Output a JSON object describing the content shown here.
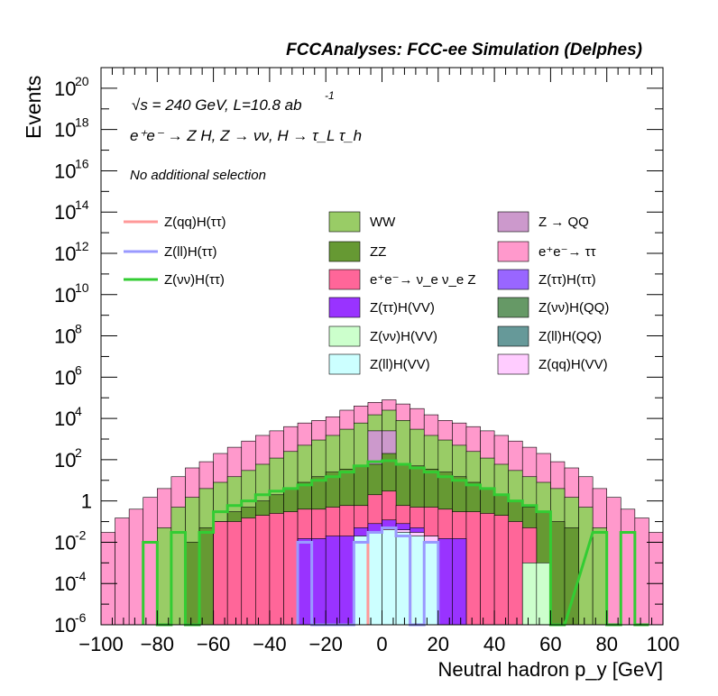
{
  "title": "FCCAnalyses: FCC-ee Simulation (Delphes)",
  "annotations": {
    "energy": "√s = 240 GeV, L=10.8 ab",
    "energy_exp": "-1",
    "process": "e⁺e⁻ → Z H, Z → νν, H → τ_L τ_h",
    "selection": "No additional selection"
  },
  "chart_data": {
    "type": "histogram-stacked-log",
    "xlabel": "Neutral hadron p_y [GeV]",
    "ylabel": "Events",
    "xlim": [
      -100,
      100
    ],
    "ylim": [
      1e-06,
      1e+21
    ],
    "log_y": true,
    "bin_width": 5,
    "x_ticks": [
      -100,
      -80,
      -60,
      -40,
      -20,
      0,
      20,
      40,
      60,
      80,
      100
    ],
    "y_ticks": [
      {
        "value": 1e-06,
        "label": "10",
        "exp": "-6"
      },
      {
        "value": 0.0001,
        "label": "10",
        "exp": "-4"
      },
      {
        "value": 0.01,
        "label": "10",
        "exp": "-2"
      },
      {
        "value": 1,
        "label": "1",
        "exp": ""
      },
      {
        "value": 100.0,
        "label": "10",
        "exp": "2"
      },
      {
        "value": 10000.0,
        "label": "10",
        "exp": "4"
      },
      {
        "value": 1000000.0,
        "label": "10",
        "exp": "6"
      },
      {
        "value": 100000000.0,
        "label": "10",
        "exp": "8"
      },
      {
        "value": 10000000000.0,
        "label": "10",
        "exp": "10"
      },
      {
        "value": 1000000000000.0,
        "label": "10",
        "exp": "12"
      },
      {
        "value": 100000000000000.0,
        "label": "10",
        "exp": "14"
      },
      {
        "value": 1e+16,
        "label": "10",
        "exp": "16"
      },
      {
        "value": 1e+18,
        "label": "10",
        "exp": "18"
      },
      {
        "value": 1e+20,
        "label": "10",
        "exp": "20"
      }
    ],
    "legend_placement": "top",
    "stack_outlines": [
      {
        "name": "e⁺e⁻→ ττ",
        "color": "#ff99cc",
        "bins": [
          [
            -100,
            -95,
            0.03
          ],
          [
            -95,
            -90,
            0.15
          ],
          [
            -90,
            -85,
            0.4
          ],
          [
            -85,
            -80,
            1.5
          ],
          [
            -80,
            -75,
            4
          ],
          [
            -75,
            -70,
            15
          ],
          [
            -70,
            -65,
            40
          ],
          [
            -65,
            -60,
            80
          ],
          [
            -60,
            -55,
            200
          ],
          [
            -55,
            -50,
            400
          ],
          [
            -50,
            -45,
            800
          ],
          [
            -45,
            -40,
            1500
          ],
          [
            -40,
            -35,
            2500
          ],
          [
            -35,
            -30,
            4000
          ],
          [
            -30,
            -25,
            6000
          ],
          [
            -25,
            -20,
            8000
          ],
          [
            -20,
            -15,
            12000
          ],
          [
            -15,
            -10,
            25000
          ],
          [
            -10,
            -5,
            40000
          ],
          [
            -5,
            0,
            60000
          ],
          [
            0,
            5,
            80000
          ],
          [
            5,
            10,
            50000
          ],
          [
            10,
            15,
            30000
          ],
          [
            15,
            20,
            15000
          ],
          [
            20,
            25,
            8000
          ],
          [
            25,
            30,
            6000
          ],
          [
            30,
            35,
            4000
          ],
          [
            35,
            40,
            2500
          ],
          [
            40,
            45,
            1500
          ],
          [
            45,
            50,
            800
          ],
          [
            50,
            55,
            400
          ],
          [
            55,
            60,
            200
          ],
          [
            60,
            65,
            80
          ],
          [
            65,
            70,
            40
          ],
          [
            70,
            75,
            15
          ],
          [
            75,
            80,
            4
          ],
          [
            80,
            85,
            1.5
          ],
          [
            85,
            90,
            0.4
          ],
          [
            90,
            95,
            0.15
          ],
          [
            95,
            100,
            0.03
          ]
        ]
      },
      {
        "name": "WW",
        "color": "#99cc66",
        "bins": [
          [
            -85,
            -80,
            1e-06
          ],
          [
            -80,
            -75,
            0.05
          ],
          [
            -75,
            -70,
            0.5
          ],
          [
            -70,
            -65,
            1.5
          ],
          [
            -65,
            -60,
            4
          ],
          [
            -60,
            -55,
            8
          ],
          [
            -55,
            -50,
            15
          ],
          [
            -50,
            -45,
            30
          ],
          [
            -45,
            -40,
            60
          ],
          [
            -40,
            -35,
            120
          ],
          [
            -35,
            -30,
            250
          ],
          [
            -30,
            -25,
            500
          ],
          [
            -25,
            -20,
            900
          ],
          [
            -20,
            -15,
            1500
          ],
          [
            -15,
            -10,
            3000
          ],
          [
            -10,
            -5,
            6000
          ],
          [
            -5,
            0,
            15000
          ],
          [
            0,
            5,
            25000
          ],
          [
            5,
            10,
            8000
          ],
          [
            10,
            15,
            3000
          ],
          [
            15,
            20,
            1500
          ],
          [
            20,
            25,
            900
          ],
          [
            25,
            30,
            500
          ],
          [
            30,
            35,
            250
          ],
          [
            35,
            40,
            120
          ],
          [
            40,
            45,
            60
          ],
          [
            45,
            50,
            30
          ],
          [
            50,
            55,
            15
          ],
          [
            55,
            60,
            8
          ],
          [
            60,
            65,
            4
          ],
          [
            65,
            70,
            1.5
          ],
          [
            70,
            75,
            0.5
          ],
          [
            75,
            80,
            0.05
          ]
        ]
      },
      {
        "name": "Z → QQ",
        "color": "#cc99cc",
        "bins": [
          [
            -5,
            0,
            2500
          ],
          [
            0,
            5,
            2500
          ]
        ]
      },
      {
        "name": "ZZ",
        "color": "#669933",
        "bins": [
          [
            -70,
            -65,
            0.01
          ],
          [
            -65,
            -60,
            0.05
          ],
          [
            -60,
            -55,
            0.1
          ],
          [
            -55,
            -50,
            0.3
          ],
          [
            -50,
            -45,
            0.5
          ],
          [
            -45,
            -40,
            1
          ],
          [
            -40,
            -35,
            2
          ],
          [
            -35,
            -30,
            4
          ],
          [
            -30,
            -25,
            8
          ],
          [
            -25,
            -20,
            15
          ],
          [
            -20,
            -15,
            25
          ],
          [
            -15,
            -10,
            35
          ],
          [
            -10,
            -5,
            50
          ],
          [
            -5,
            0,
            60
          ],
          [
            0,
            5,
            200
          ],
          [
            5,
            10,
            60
          ],
          [
            10,
            15,
            50
          ],
          [
            15,
            20,
            35
          ],
          [
            20,
            25,
            25
          ],
          [
            25,
            30,
            15
          ],
          [
            30,
            35,
            8
          ],
          [
            35,
            40,
            4
          ],
          [
            40,
            45,
            2
          ],
          [
            45,
            50,
            1
          ],
          [
            50,
            55,
            0.5
          ],
          [
            55,
            60,
            0.3
          ],
          [
            60,
            65,
            0.1
          ],
          [
            65,
            70,
            0.05
          ]
        ]
      },
      {
        "name": "e⁺e⁻→ ν_e ν_e Z",
        "color": "#ff6699",
        "bins": [
          [
            -60,
            -55,
            0.1
          ],
          [
            -55,
            -50,
            0.1
          ],
          [
            -50,
            -45,
            0.15
          ],
          [
            -45,
            -40,
            0.2
          ],
          [
            -40,
            -35,
            0.25
          ],
          [
            -35,
            -30,
            0.3
          ],
          [
            -30,
            -25,
            0.4
          ],
          [
            -25,
            -20,
            0.4
          ],
          [
            -20,
            -15,
            0.5
          ],
          [
            -15,
            -10,
            0.6
          ],
          [
            -10,
            -5,
            0.6
          ],
          [
            -5,
            0,
            2
          ],
          [
            0,
            5,
            3
          ],
          [
            5,
            10,
            0.6
          ],
          [
            10,
            15,
            0.5
          ],
          [
            15,
            20,
            0.5
          ],
          [
            20,
            25,
            0.4
          ],
          [
            25,
            30,
            0.3
          ],
          [
            30,
            35,
            0.3
          ],
          [
            35,
            40,
            0.25
          ],
          [
            40,
            45,
            0.2
          ],
          [
            45,
            50,
            0.1
          ],
          [
            50,
            55,
            0.05
          ]
        ]
      },
      {
        "name": "Z(ττ)H(VV)",
        "color": "#9933ff",
        "bins": [
          [
            -30,
            -25,
            0.015
          ],
          [
            -25,
            -20,
            0.015
          ],
          [
            -20,
            -15,
            0.02
          ],
          [
            -15,
            -10,
            0.02
          ],
          [
            -10,
            -5,
            0.05
          ],
          [
            -5,
            0,
            0.08
          ],
          [
            0,
            5,
            0.12
          ],
          [
            5,
            10,
            0.08
          ],
          [
            10,
            15,
            0.05
          ],
          [
            15,
            20,
            0.02
          ],
          [
            20,
            25,
            0.015
          ],
          [
            25,
            30,
            0.015
          ]
        ]
      },
      {
        "name": "Z(νν)H(VV)",
        "color": "#ccffcc",
        "bins": [
          [
            50,
            55,
            0.001
          ],
          [
            55,
            60,
            0.001
          ]
        ]
      },
      {
        "name": "Z(qq)H(VV)",
        "color": "#ffccff",
        "bins": [
          [
            0,
            5,
            0.05
          ],
          [
            5,
            10,
            0.04
          ],
          [
            10,
            15,
            0.03
          ],
          [
            15,
            20,
            0.02
          ]
        ]
      },
      {
        "name": "Z(ll)H(VV)",
        "color": "#ccffff",
        "bins": [
          [
            -10,
            -5,
            0.02
          ],
          [
            -5,
            0,
            0.03
          ],
          [
            0,
            5,
            0.04
          ],
          [
            5,
            10,
            0.03
          ],
          [
            10,
            15,
            0.02
          ],
          [
            15,
            20,
            0.01
          ]
        ]
      }
    ],
    "lines": [
      {
        "name": "Z(qq)H(ττ)",
        "color": "#ff9999",
        "bins": [
          [
            -5,
            0,
            0.03
          ],
          [
            0,
            5,
            0.05
          ],
          [
            5,
            10,
            0.02
          ]
        ]
      },
      {
        "name": "Z(ll)H(ττ)",
        "color": "#9999ff",
        "bins": [
          [
            -30,
            -25,
            0.01
          ],
          [
            -25,
            -20,
            1e-06
          ],
          [
            -15,
            -10,
            1e-06
          ],
          [
            -10,
            -5,
            0.01
          ],
          [
            -5,
            0,
            0.03
          ],
          [
            0,
            5,
            0.05
          ],
          [
            5,
            10,
            0.02
          ],
          [
            10,
            15,
            1e-06
          ],
          [
            15,
            20,
            0.01
          ]
        ]
      },
      {
        "name": "Z(νν)H(ττ)",
        "color": "#33cc33",
        "bins": [
          [
            -85,
            -80,
            0.01
          ],
          [
            -80,
            -75,
            1e-06
          ],
          [
            -75,
            -70,
            0.03
          ],
          [
            -70,
            -65,
            1e-06
          ],
          [
            -65,
            -60,
            0.03
          ],
          [
            -60,
            -55,
            0.3
          ],
          [
            -55,
            -50,
            0.6
          ],
          [
            -50,
            -45,
            1
          ],
          [
            -45,
            -40,
            2
          ],
          [
            -40,
            -35,
            3
          ],
          [
            -35,
            -30,
            4
          ],
          [
            -30,
            -25,
            6
          ],
          [
            -25,
            -20,
            10
          ],
          [
            -20,
            -15,
            15
          ],
          [
            -15,
            -10,
            25
          ],
          [
            -10,
            -5,
            50
          ],
          [
            -5,
            0,
            80
          ],
          [
            0,
            5,
            90
          ],
          [
            5,
            10,
            60
          ],
          [
            10,
            15,
            40
          ],
          [
            15,
            20,
            25
          ],
          [
            20,
            25,
            15
          ],
          [
            25,
            30,
            10
          ],
          [
            30,
            35,
            6
          ],
          [
            35,
            40,
            4
          ],
          [
            40,
            45,
            2
          ],
          [
            45,
            50,
            1
          ],
          [
            50,
            55,
            0.6
          ],
          [
            55,
            60,
            0.3
          ],
          [
            60,
            65,
            1e-06
          ],
          [
            75,
            80,
            0.03
          ],
          [
            80,
            85,
            1e-06
          ],
          [
            85,
            90,
            0.03
          ],
          [
            90,
            95,
            1e-06
          ]
        ]
      }
    ],
    "legend": [
      {
        "label": "Z(qq)H(ττ)",
        "kind": "line",
        "color": "#ff9999",
        "col": 0,
        "row": 0
      },
      {
        "label": "Z(ll)H(ττ)",
        "kind": "line",
        "color": "#9999ff",
        "col": 0,
        "row": 1
      },
      {
        "label": "Z(νν)H(ττ)",
        "kind": "line",
        "color": "#33cc33",
        "col": 0,
        "row": 2
      },
      {
        "label": "WW",
        "kind": "box",
        "color": "#99cc66",
        "col": 1,
        "row": 0
      },
      {
        "label": "ZZ",
        "kind": "box",
        "color": "#669933",
        "col": 1,
        "row": 1
      },
      {
        "label": "e⁺e⁻→ ν_e ν_e Z",
        "kind": "box",
        "color": "#ff6699",
        "col": 1,
        "row": 2
      },
      {
        "label": "Z(ττ)H(VV)",
        "kind": "box",
        "color": "#9933ff",
        "col": 1,
        "row": 3
      },
      {
        "label": "Z(νν)H(VV)",
        "kind": "box",
        "color": "#ccffcc",
        "col": 1,
        "row": 4
      },
      {
        "label": "Z(ll)H(VV)",
        "kind": "box",
        "color": "#ccffff",
        "col": 1,
        "row": 5
      },
      {
        "label": "Z → QQ",
        "kind": "box",
        "color": "#cc99cc",
        "col": 2,
        "row": 0
      },
      {
        "label": "e⁺e⁻→ ττ",
        "kind": "box",
        "color": "#ff99cc",
        "col": 2,
        "row": 1
      },
      {
        "label": "Z(ττ)H(ττ)",
        "kind": "box",
        "color": "#9966ff",
        "col": 2,
        "row": 2
      },
      {
        "label": "Z(νν)H(QQ)",
        "kind": "box",
        "color": "#669966",
        "col": 2,
        "row": 3
      },
      {
        "label": "Z(ll)H(QQ)",
        "kind": "box",
        "color": "#669999",
        "col": 2,
        "row": 4
      },
      {
        "label": "Z(qq)H(VV)",
        "kind": "box",
        "color": "#ffccff",
        "col": 2,
        "row": 5
      }
    ]
  }
}
